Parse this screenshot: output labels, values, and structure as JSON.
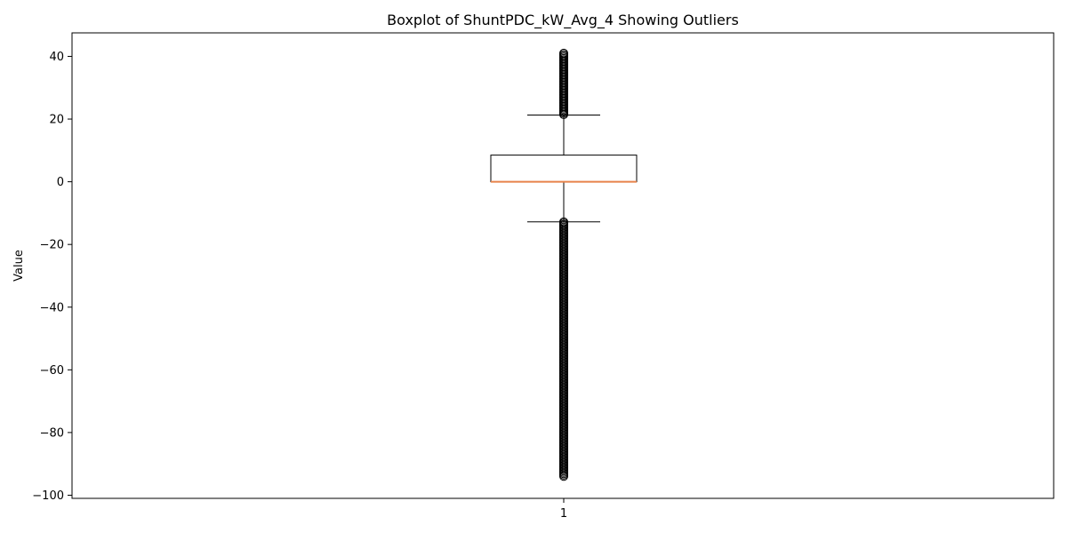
{
  "chart_data": {
    "type": "box",
    "title": "Boxplot of ShuntPDC_kW_Avg_4 Showing Outliers",
    "xlabel": "",
    "ylabel": "Value",
    "categories": [
      "1"
    ],
    "ylim": [
      -101,
      47.5
    ],
    "yticks": [
      40,
      20,
      0,
      -20,
      -40,
      -60,
      -80,
      -100
    ],
    "ytick_labels": [
      "40",
      "20",
      "0",
      "−20",
      "−40",
      "−60",
      "−80",
      "−100"
    ],
    "box": {
      "q1": 0,
      "median": 0,
      "q3": 8.5,
      "whisker_low": -12.8,
      "whisker_high": 21.3
    },
    "outlier_ranges": [
      [
        21.3,
        41
      ],
      [
        -94.3,
        -12.8
      ]
    ],
    "colors": {
      "box": "#000000",
      "median": "#e8834a",
      "axes": "#000000"
    }
  }
}
